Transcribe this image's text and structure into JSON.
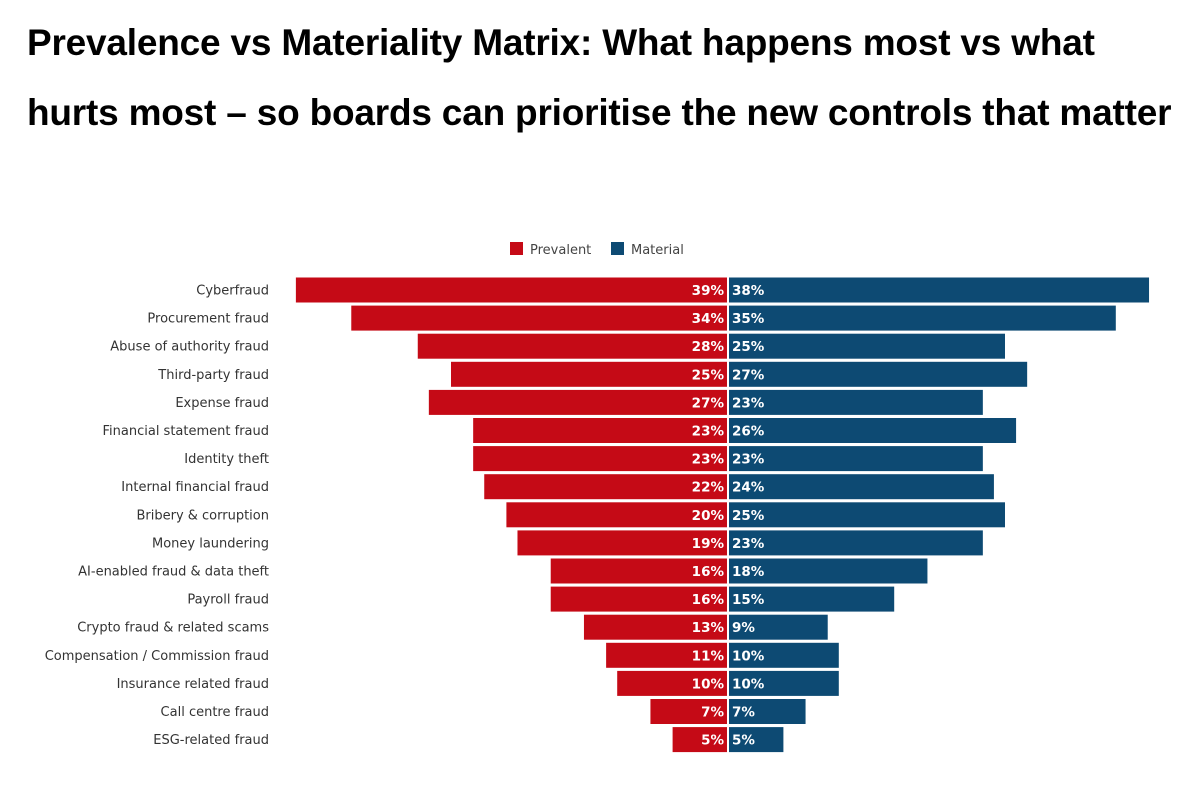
{
  "title": "Prevalence vs Materiality Matrix: What happens most vs what hurts most – so boards can prioritise the new controls that matter",
  "chart_data": {
    "type": "bar",
    "orientation": "horizontal-diverging",
    "title": "Prevalence vs Materiality Matrix: What happens most vs what hurts most – so boards can prioritise the new controls that matter",
    "legend_position": "top-center",
    "categories": [
      "Cyberfraud",
      "Procurement fraud",
      "Abuse of authority fraud",
      "Third-party fraud",
      "Expense fraud",
      "Financial statement fraud",
      "Identity theft",
      "Internal financial fraud",
      "Bribery & corruption",
      "Money laundering",
      "AI-enabled fraud & data theft",
      "Payroll fraud",
      "Crypto fraud & related scams",
      "Compensation / Commission fraud",
      "Insurance related fraud",
      "Call centre fraud",
      "ESG-related fraud"
    ],
    "series": [
      {
        "name": "Prevalent",
        "color": "#c50a16",
        "values": [
          39,
          34,
          28,
          25,
          27,
          23,
          23,
          22,
          20,
          19,
          16,
          16,
          13,
          11,
          10,
          7,
          5
        ]
      },
      {
        "name": "Material",
        "color": "#0d4a73",
        "values": [
          38,
          35,
          25,
          27,
          23,
          26,
          23,
          24,
          25,
          23,
          18,
          15,
          9,
          10,
          10,
          7,
          5
        ]
      }
    ],
    "unit": "%",
    "xlim": [
      0,
      40
    ]
  }
}
